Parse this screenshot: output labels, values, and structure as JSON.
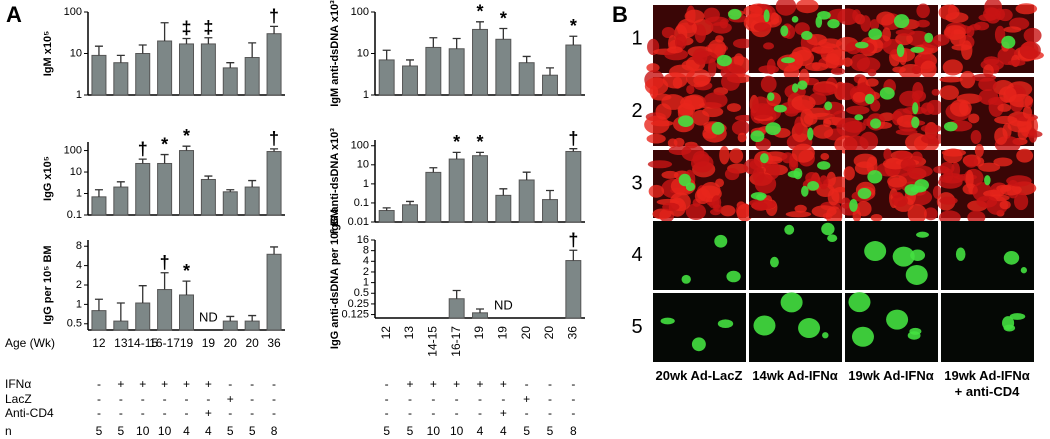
{
  "panel_a": {
    "label": "A",
    "chart_data": [
      {
        "type": "bar",
        "ylabel": "IgM x10⁵",
        "log": true,
        "color": "#7d8787",
        "ylim": [
          1,
          100
        ],
        "yticks": [
          1,
          10,
          100
        ],
        "values": [
          9,
          6,
          10,
          20,
          17,
          17,
          4.5,
          8,
          30
        ],
        "errors": [
          6,
          3,
          6,
          35,
          6,
          7,
          1.5,
          10,
          15
        ],
        "annotations": [
          null,
          null,
          null,
          null,
          "‡",
          "‡",
          null,
          null,
          "†"
        ]
      },
      {
        "type": "bar",
        "ylabel": "IgG x10⁵",
        "log": true,
        "color": "#7d8787",
        "ylim": [
          0.1,
          250
        ],
        "yticks": [
          0.1,
          1,
          10,
          100
        ],
        "values": [
          0.7,
          2,
          25,
          25,
          100,
          4.5,
          1.2,
          2,
          90
        ],
        "errors": [
          0.8,
          1.5,
          15,
          40,
          60,
          2,
          0.3,
          2,
          30
        ],
        "annotations": [
          null,
          null,
          "†",
          "*",
          "*",
          null,
          null,
          null,
          "†"
        ]
      },
      {
        "type": "bar",
        "ylabel": "IgG per 10⁵ BM",
        "log": true,
        "color": "#7d8787",
        "ylim": [
          0.4,
          10
        ],
        "yticks": [
          0.5,
          1,
          2,
          4,
          8
        ],
        "xlabel": "Age (Wk)",
        "categories": [
          "12",
          "13",
          "14-15",
          "16-17",
          "19",
          "19",
          "20",
          "20",
          "36"
        ],
        "values": [
          0.8,
          0.55,
          1.05,
          1.7,
          1.4,
          null,
          0.55,
          0.55,
          6
        ],
        "errors": [
          0.4,
          0.5,
          0.9,
          1.4,
          0.9,
          null,
          0.1,
          0.12,
          1.8
        ],
        "annotations": [
          null,
          null,
          null,
          "†",
          "*",
          "ND",
          null,
          null,
          null
        ]
      },
      {
        "type": "bar",
        "ylabel": "IgM anti-dsDNA x10³",
        "log": true,
        "color": "#7d8787",
        "ylim": [
          1,
          100
        ],
        "yticks": [
          1,
          10,
          100
        ],
        "values": [
          7,
          5,
          14,
          13,
          38,
          22,
          6,
          3,
          16
        ],
        "errors": [
          5,
          2,
          10,
          10,
          20,
          18,
          2.5,
          1.5,
          10
        ],
        "annotations": [
          null,
          null,
          null,
          null,
          "*",
          "*",
          null,
          null,
          "*"
        ]
      },
      {
        "type": "bar",
        "ylabel": "IgG anti-dsDNA x10³",
        "log": true,
        "color": "#7d8787",
        "ylim": [
          0.01,
          200
        ],
        "yticks": [
          0.01,
          0.1,
          1,
          10,
          100
        ],
        "values": [
          0.04,
          0.08,
          4,
          20,
          30,
          0.25,
          1.6,
          0.15,
          50
        ],
        "errors": [
          0.015,
          0.04,
          3,
          25,
          15,
          0.3,
          2.5,
          0.3,
          20
        ],
        "annotations": [
          null,
          null,
          null,
          "*",
          "*",
          null,
          null,
          null,
          "†"
        ]
      },
      {
        "type": "bar",
        "ylabel": "IgG anti-dsDNA per 10³ BM",
        "log": true,
        "color": "#7d8787",
        "ylim": [
          0.1,
          16
        ],
        "yticks": [
          0.125,
          0.25,
          0.5,
          1,
          2,
          4,
          8,
          16
        ],
        "categories": [
          "12",
          "13",
          "14-15",
          "16-17",
          "19",
          "19",
          "20",
          "20",
          "36"
        ],
        "values": [
          null,
          null,
          null,
          0.35,
          0.14,
          null,
          null,
          null,
          4.2
        ],
        "errors": [
          null,
          null,
          null,
          0.25,
          0.04,
          null,
          null,
          null,
          4
        ],
        "annotations": [
          null,
          null,
          null,
          null,
          null,
          "ND",
          null,
          null,
          "†"
        ]
      }
    ],
    "table": {
      "rows": [
        {
          "label": "IFNα",
          "cells": [
            "-",
            "+",
            "+",
            "+",
            "+",
            "+",
            "-",
            "-",
            "-"
          ]
        },
        {
          "label": "LacZ",
          "cells": [
            "-",
            "-",
            "-",
            "-",
            "-",
            "-",
            "+",
            "-",
            "-"
          ]
        },
        {
          "label": "Anti-CD4",
          "cells": [
            "-",
            "-",
            "-",
            "-",
            "-",
            "+",
            "-",
            "-",
            "-"
          ]
        },
        {
          "label": "n",
          "cells": [
            "5",
            "5",
            "10",
            "10",
            "4",
            "4",
            "5",
            "5",
            "8"
          ]
        }
      ]
    }
  },
  "panel_b": {
    "label": "B",
    "row_labels": [
      "1",
      "2",
      "3",
      "4",
      "5"
    ],
    "column_labels": [
      "20wk Ad-LacZ",
      "14wk Ad-IFNα",
      "19wk Ad-IFNα",
      "19wk Ad-IFNα + anti-CD4"
    ]
  }
}
